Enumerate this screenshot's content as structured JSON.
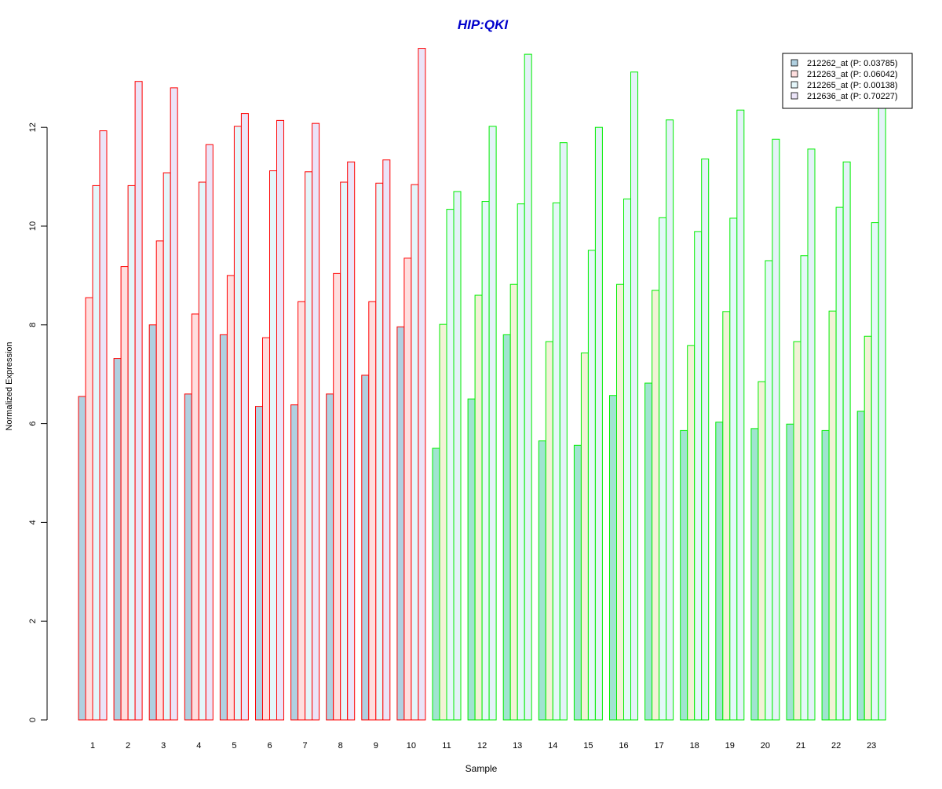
{
  "chart_data": {
    "type": "bar",
    "title": "HIP:QKI",
    "xlabel": "Sample",
    "ylabel": "Normalized Expression",
    "ylim": [
      0,
      13.7
    ],
    "yticks": [
      0,
      2,
      4,
      6,
      8,
      10,
      12
    ],
    "grid": false,
    "legend_position": "top-right",
    "categories": [
      "1",
      "2",
      "3",
      "4",
      "5",
      "6",
      "7",
      "8",
      "9",
      "10",
      "11",
      "12",
      "13",
      "14",
      "15",
      "16",
      "17",
      "18",
      "19",
      "20",
      "21",
      "22",
      "23"
    ],
    "groups": [
      {
        "border_color": "#ff0000",
        "samples": [
          1,
          2,
          3,
          4,
          5,
          6,
          7,
          8,
          9,
          10
        ]
      },
      {
        "border_color": "#00ee00",
        "samples": [
          11,
          12,
          13,
          14,
          15,
          16,
          17,
          18,
          19,
          20,
          21,
          22,
          23
        ]
      }
    ],
    "series": [
      {
        "name": "212262_at (P: 0.03785)",
        "fill_group1": "#b0d0e0",
        "fill_group2": "#a0e4d0",
        "values": [
          6.55,
          7.32,
          8.0,
          6.6,
          7.8,
          6.35,
          6.38,
          6.6,
          6.98,
          7.96,
          5.5,
          6.5,
          7.8,
          5.65,
          5.56,
          6.57,
          6.82,
          5.86,
          6.03,
          5.9,
          5.99,
          5.86,
          6.25
        ]
      },
      {
        "name": "212263_at (P: 0.06042)",
        "fill_group1": "#ffdede",
        "fill_group2": "#f2f2d6",
        "values": [
          8.55,
          9.18,
          9.7,
          8.22,
          9.0,
          7.74,
          8.47,
          9.04,
          8.47,
          9.35,
          8.01,
          8.6,
          8.82,
          7.66,
          7.43,
          8.82,
          8.7,
          7.58,
          8.27,
          6.85,
          7.66,
          8.28,
          7.77
        ]
      },
      {
        "name": "212265_at (P: 0.00138)",
        "fill_group1": "#e4f6fa",
        "fill_group2": "#e4f8f8",
        "values": [
          10.82,
          10.82,
          11.08,
          10.89,
          12.02,
          11.12,
          11.1,
          10.89,
          10.87,
          10.84,
          10.34,
          10.5,
          10.45,
          10.47,
          9.51,
          10.55,
          10.17,
          9.89,
          10.16,
          9.3,
          9.4,
          10.38,
          10.07
        ]
      },
      {
        "name": "212636_at (P: 0.70227)",
        "fill_group1": "#ebe4f8",
        "fill_group2": "#e4f2f8",
        "values": [
          11.93,
          12.93,
          12.8,
          11.65,
          12.28,
          12.14,
          12.08,
          11.3,
          11.34,
          13.6,
          10.7,
          12.02,
          13.48,
          11.69,
          12.0,
          13.12,
          12.15,
          11.36,
          12.35,
          11.76,
          11.56,
          11.3,
          12.7
        ]
      }
    ]
  }
}
